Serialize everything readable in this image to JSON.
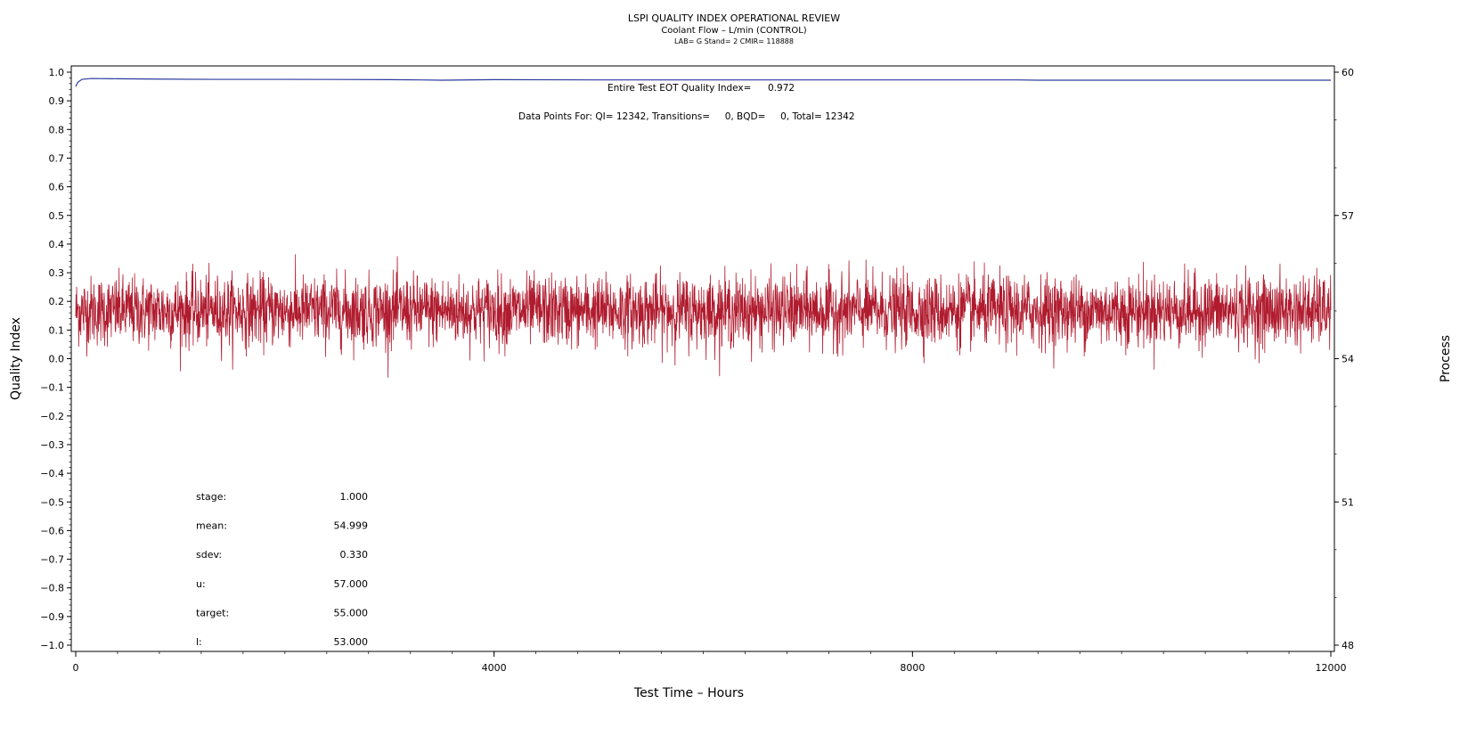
{
  "header": {
    "title": "LSPI QUALITY INDEX OPERATIONAL REVIEW",
    "subtitle": "Coolant Flow – L/min (CONTROL)",
    "info": "LAB= G Stand= 2 CMIR= 118888"
  },
  "chart_data": {
    "type": "line",
    "xlabel": "Test Time – Hours",
    "ylabel": "Quality Index",
    "y2label": "Process",
    "xlim": [
      0,
      12000
    ],
    "ylim": [
      -1.0,
      1.0
    ],
    "y2lim": [
      48,
      60
    ],
    "x_ticks": [
      "0",
      "4000",
      "8000",
      "12000"
    ],
    "x_tick_values": [
      0,
      4000,
      8000,
      12000
    ],
    "y_ticks": [
      "1.0",
      "0.9",
      "0.8",
      "0.7",
      "0.6",
      "0.5",
      "0.4",
      "0.3",
      "0.2",
      "0.1",
      "0.0",
      "−0.1",
      "−0.2",
      "−0.3",
      "−0.4",
      "−0.5",
      "−0.6",
      "−0.7",
      "−0.8",
      "−0.9",
      "−1.0"
    ],
    "y_tick_values": [
      1.0,
      0.9,
      0.8,
      0.7,
      0.6,
      0.5,
      0.4,
      0.3,
      0.2,
      0.1,
      0.0,
      -0.1,
      -0.2,
      -0.3,
      -0.4,
      -0.5,
      -0.6,
      -0.7,
      -0.8,
      -0.9,
      -1.0
    ],
    "y2_ticks": [
      "60",
      "57",
      "54",
      "51",
      "48"
    ],
    "y2_tick_values": [
      60,
      57,
      54,
      51,
      48
    ],
    "series": [
      {
        "role": "quality-index",
        "color": "#2a3a9e",
        "axis": "left",
        "x": [
          0,
          20,
          60,
          150,
          400,
          800,
          1300,
          2000,
          3000,
          3300,
          3500,
          4000,
          5000,
          6000,
          7000,
          8000,
          9000,
          9200,
          10000,
          11000,
          12000
        ],
        "y": [
          0.95,
          0.965,
          0.975,
          0.978,
          0.977,
          0.976,
          0.975,
          0.975,
          0.974,
          0.973,
          0.972,
          0.974,
          0.973,
          0.973,
          0.973,
          0.973,
          0.973,
          0.972,
          0.972,
          0.972,
          0.972
        ]
      },
      {
        "role": "process",
        "color": "#b01b2e",
        "axis": "right",
        "x_start": 0,
        "x_end": 12000,
        "mean": 54.999,
        "sdev": 0.33,
        "min_observed": 53.6,
        "max_observed": 56.3
      }
    ],
    "annotations": {
      "eot_label": "Entire Test EOT Quality Index=",
      "eot_value": "0.972",
      "data_points": "Data Points For: QI= 12342, Transitions=     0, BQD=     0, Total= 12342"
    },
    "stats": [
      {
        "label": "stage:",
        "value": "1.000"
      },
      {
        "label": "mean:",
        "value": "54.999"
      },
      {
        "label": "sdev:",
        "value": "0.330"
      },
      {
        "label": "u:",
        "value": "57.000"
      },
      {
        "label": "target:",
        "value": "55.000"
      },
      {
        "label": "l:",
        "value": "53.000"
      }
    ]
  }
}
